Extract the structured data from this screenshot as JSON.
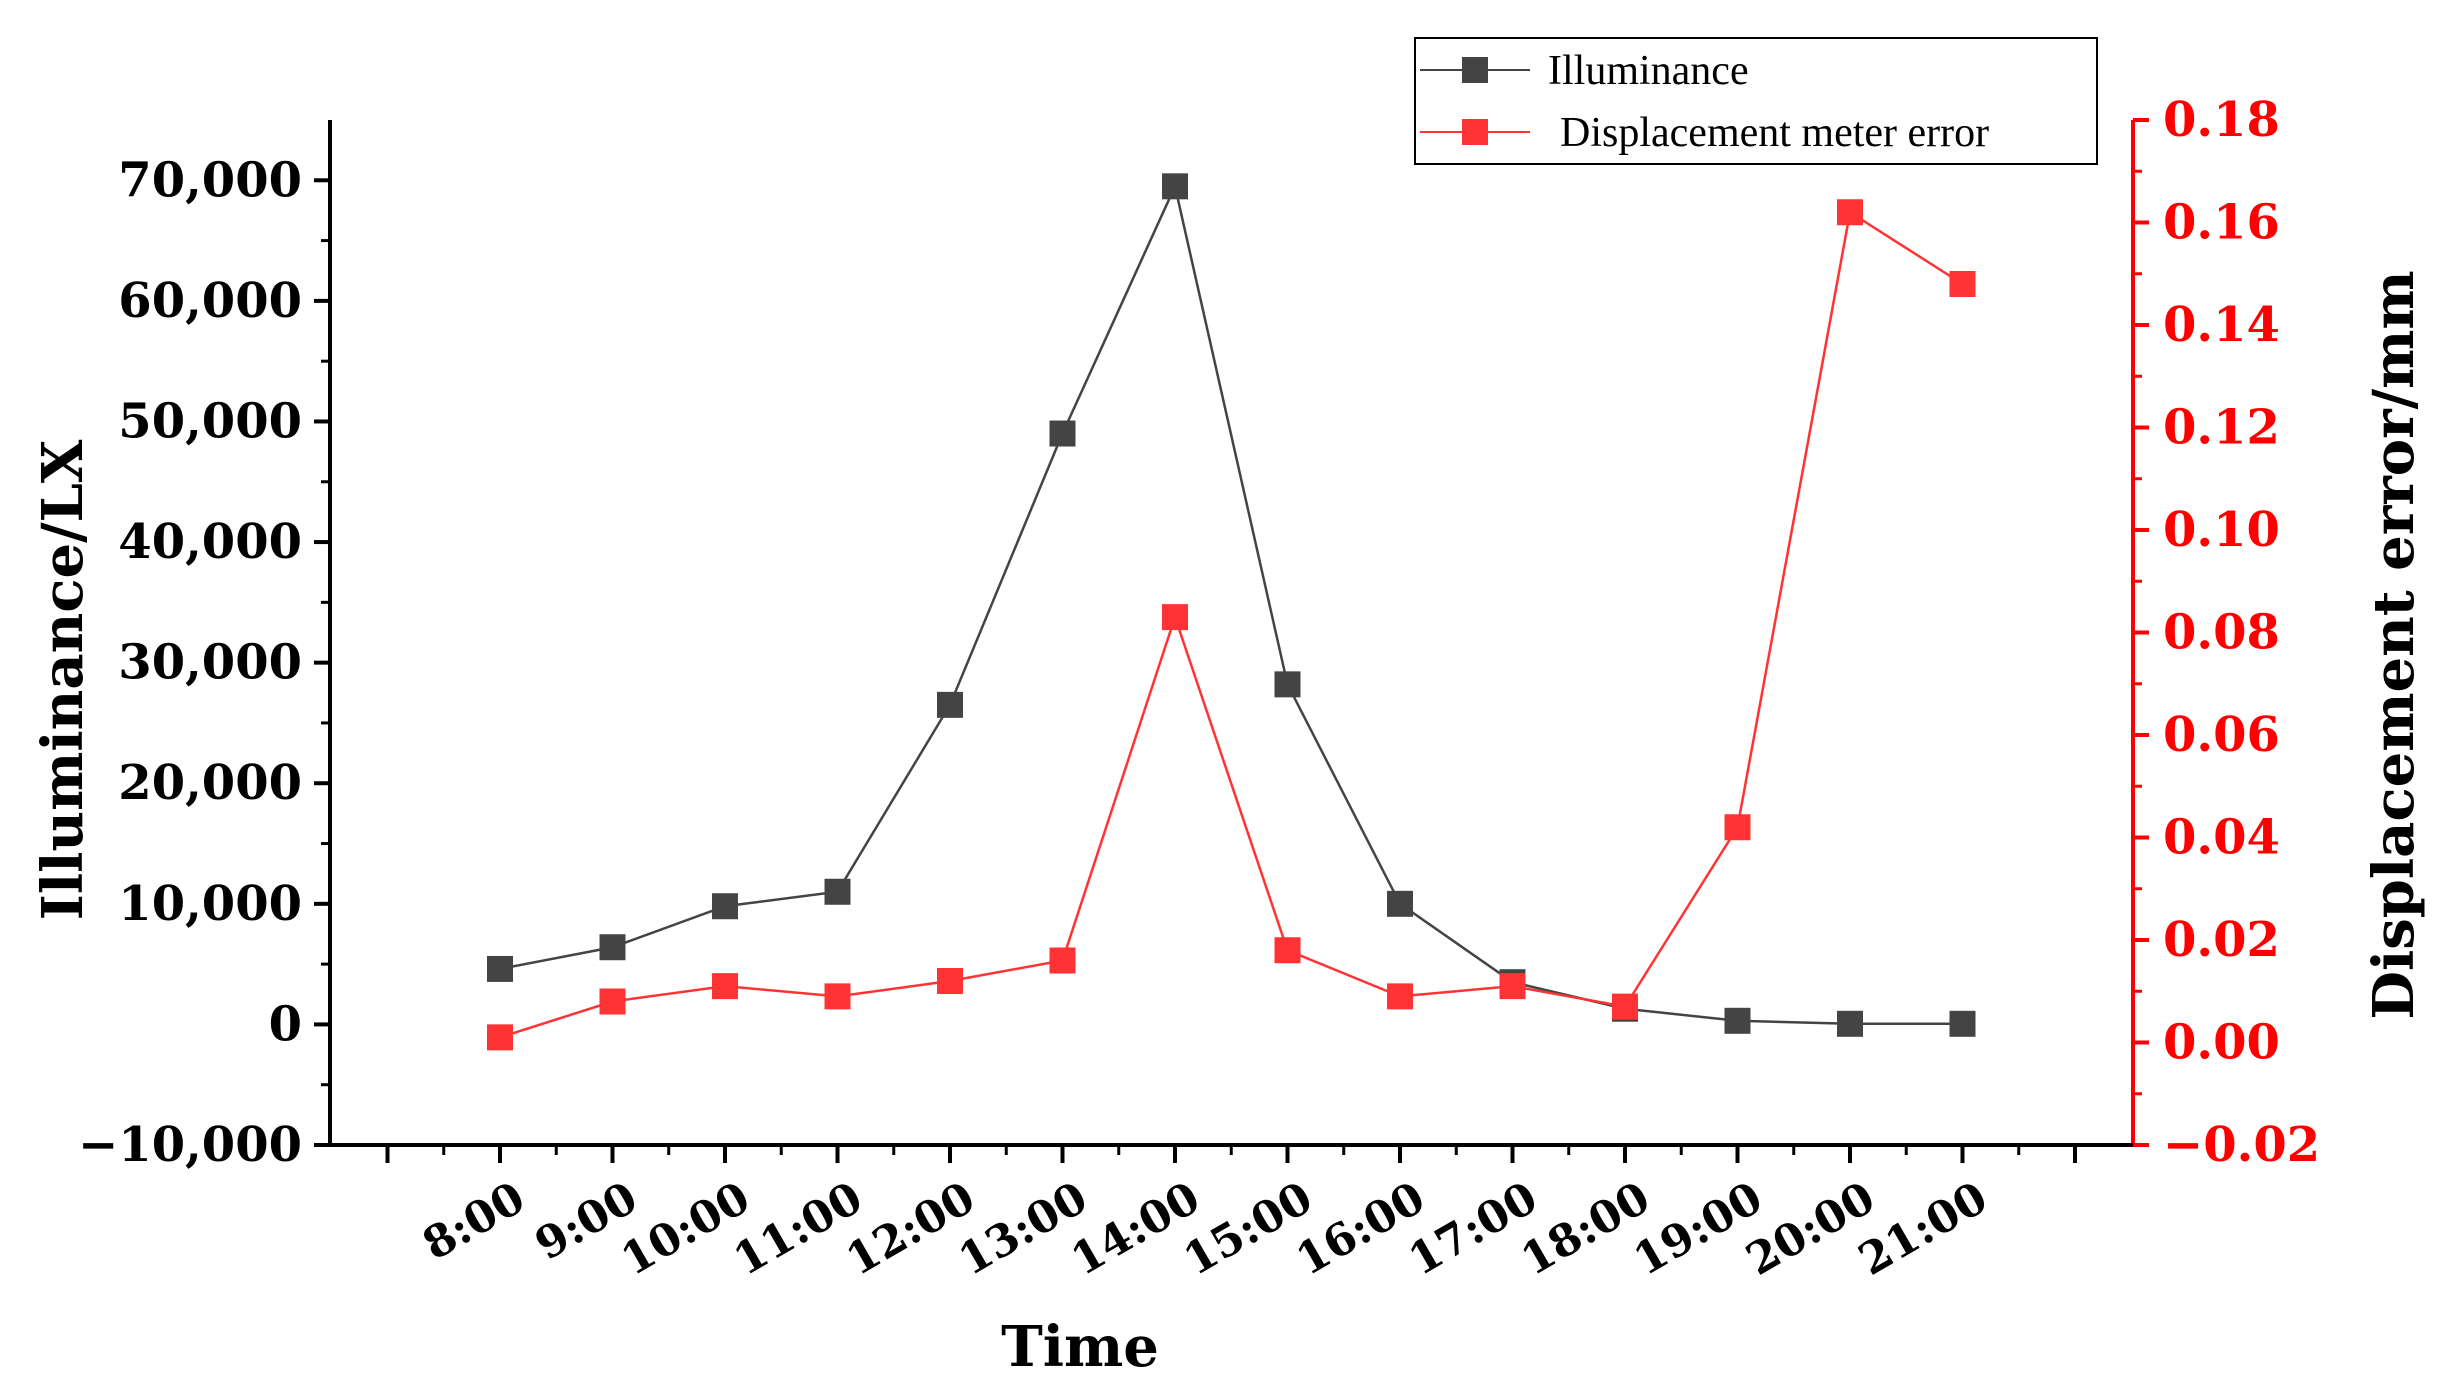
{
  "chart_data": {
    "type": "line",
    "title": "",
    "xlabel": "Time",
    "categories": [
      "8:00",
      "9:00",
      "10:00",
      "11:00",
      "12:00",
      "13:00",
      "14:00",
      "15:00",
      "16:00",
      "17:00",
      "18:00",
      "19:00",
      "20:00",
      "21:00"
    ],
    "y_left": {
      "label": "Illuminance/LX",
      "range": [
        -10000,
        75000
      ],
      "ticks": [
        -10000,
        0,
        10000,
        20000,
        30000,
        40000,
        50000,
        60000,
        70000
      ],
      "tick_labels": [
        "−10,000",
        "0",
        "10,000",
        "20,000",
        "30,000",
        "40,000",
        "50,000",
        "60,000",
        "70,000"
      ],
      "color": "#000000"
    },
    "y_right": {
      "label": "Displacement error/mm",
      "range": [
        -0.02,
        0.18
      ],
      "ticks": [
        -0.02,
        0.0,
        0.02,
        0.04,
        0.06,
        0.08,
        0.1,
        0.12,
        0.14,
        0.16,
        0.18
      ],
      "tick_labels": [
        "−0.02",
        "0.00",
        "0.02",
        "0.04",
        "0.06",
        "0.08",
        "0.10",
        "0.12",
        "0.14",
        "0.16",
        "0.18"
      ],
      "color": "#ff0000"
    },
    "series": [
      {
        "name": "Illuminance",
        "axis": "left",
        "color": "#444444",
        "values": [
          4600,
          6400,
          9800,
          11000,
          26500,
          49000,
          69500,
          28200,
          10000,
          3500,
          1300,
          300,
          50,
          50
        ]
      },
      {
        "name": "Displacement meter error",
        "axis": "right",
        "color": "#ff3333",
        "values": [
          0.001,
          0.008,
          0.011,
          0.009,
          0.012,
          0.016,
          0.083,
          0.018,
          0.009,
          0.011,
          0.007,
          0.042,
          0.162,
          0.148
        ]
      }
    ],
    "legend": {
      "placement": "top-right"
    },
    "grid": false
  }
}
